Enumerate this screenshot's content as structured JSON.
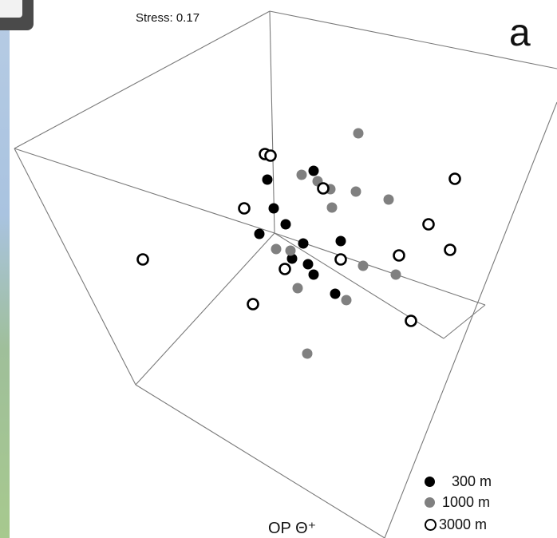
{
  "chart_data": {
    "type": "scatter",
    "title": "",
    "stress_label": "Stress: 0.17",
    "panel_label": "a",
    "axis_label": "OP Θ⁺",
    "three_d": true,
    "series": [
      {
        "name": "300 m",
        "marker": "filled",
        "color": "#000000",
        "points": [
          [
            335,
            225
          ],
          [
            393,
            214
          ],
          [
            343,
            261
          ],
          [
            358,
            281
          ],
          [
            325,
            293
          ],
          [
            380,
            305
          ],
          [
            427,
            302
          ],
          [
            366,
            324
          ],
          [
            386,
            331
          ],
          [
            393,
            344
          ],
          [
            420,
            368
          ]
        ]
      },
      {
        "name": "1000 m",
        "marker": "filled",
        "color": "#808080",
        "points": [
          [
            449,
            167
          ],
          [
            378,
            219
          ],
          [
            398,
            227
          ],
          [
            414,
            237
          ],
          [
            446,
            240
          ],
          [
            487,
            250
          ],
          [
            416,
            260
          ],
          [
            346,
            312
          ],
          [
            364,
            314
          ],
          [
            455,
            333
          ],
          [
            496,
            344
          ],
          [
            373,
            361
          ],
          [
            434,
            376
          ],
          [
            385,
            443
          ]
        ]
      },
      {
        "name": "3000 m",
        "marker": "open",
        "color": "#000000",
        "points": [
          [
            332,
            193
          ],
          [
            339,
            195
          ],
          [
            570,
            224
          ],
          [
            405,
            236
          ],
          [
            306,
            261
          ],
          [
            537,
            281
          ],
          [
            564,
            313
          ],
          [
            179,
            325
          ],
          [
            500,
            320
          ],
          [
            427,
            325
          ],
          [
            357,
            337
          ],
          [
            317,
            381
          ],
          [
            515,
            402
          ]
        ]
      }
    ],
    "box": {
      "stroke": "#7a7a7a",
      "edges": [
        [
          [
            18,
            186
          ],
          [
            338,
            14
          ]
        ],
        [
          [
            338,
            14
          ],
          [
            698,
            86
          ]
        ],
        [
          [
            18,
            186
          ],
          [
            170,
            482
          ]
        ],
        [
          [
            338,
            14
          ],
          [
            344,
            292
          ]
        ],
        [
          [
            18,
            186
          ],
          [
            344,
            292
          ]
        ],
        [
          [
            344,
            292
          ],
          [
            608,
            382
          ]
        ],
        [
          [
            170,
            482
          ],
          [
            344,
            292
          ]
        ],
        [
          [
            344,
            292
          ],
          [
            556,
            424
          ]
        ],
        [
          [
            170,
            482
          ],
          [
            482,
            674
          ]
        ],
        [
          [
            698,
            128
          ],
          [
            482,
            674
          ]
        ],
        [
          [
            556,
            424
          ],
          [
            608,
            382
          ]
        ]
      ]
    },
    "legend": {
      "position": "bottom-right"
    }
  }
}
